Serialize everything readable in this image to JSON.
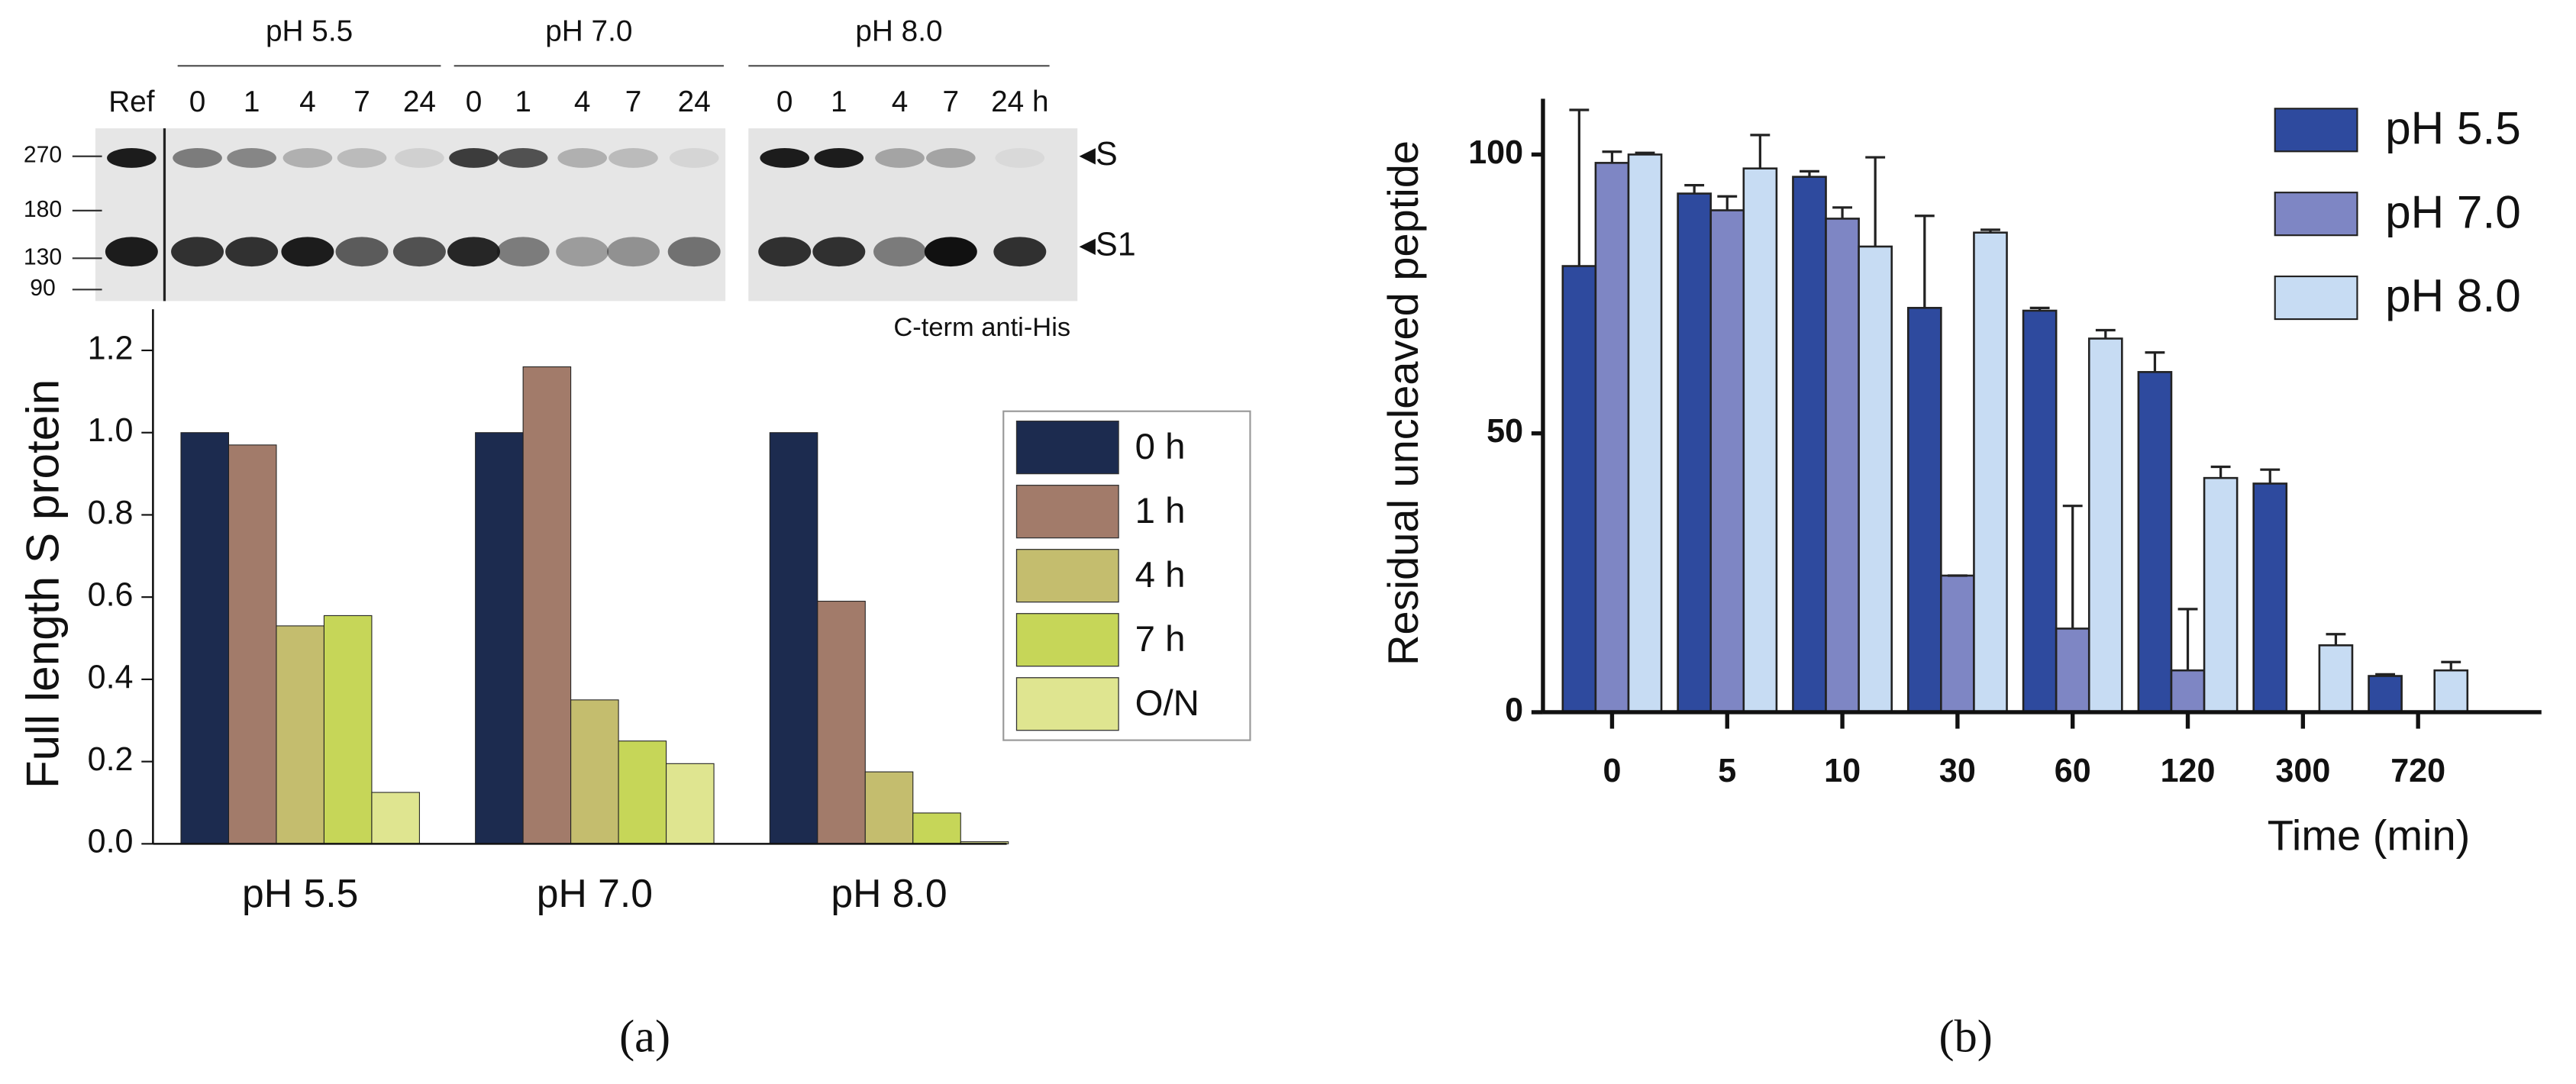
{
  "panels": [
    "(a)",
    "(b)"
  ],
  "blot": {
    "groups": [
      "pH 5.5",
      "pH 7.0",
      "pH 8.0"
    ],
    "lanes": [
      "Ref",
      "0",
      "1",
      "4",
      "7",
      "24",
      "0",
      "1",
      "4",
      "7",
      "24",
      "0",
      "1",
      "4",
      "7",
      "24 h"
    ],
    "markers": [
      "270",
      "180",
      "130",
      "90"
    ],
    "bands": [
      "◂S",
      "◂S1"
    ],
    "antibody": "C-term anti-His"
  },
  "chart_data": [
    {
      "type": "bar",
      "ylabel": "Full length S protein",
      "categories": [
        "pH 5.5",
        "pH 7.0",
        "pH 8.0"
      ],
      "series": [
        {
          "name": "0 h",
          "color": "#1c2b4f",
          "values": [
            1.0,
            1.0,
            1.0
          ]
        },
        {
          "name": "1 h",
          "color": "#a27b6a",
          "values": [
            0.97,
            1.16,
            0.59
          ]
        },
        {
          "name": "4 h",
          "color": "#c4bd6e",
          "values": [
            0.53,
            0.35,
            0.175
          ]
        },
        {
          "name": "7 h",
          "color": "#c6d658",
          "values": [
            0.555,
            0.25,
            0.075
          ]
        },
        {
          "name": "O/N",
          "color": "#dfe590",
          "values": [
            0.125,
            0.195,
            0.005
          ]
        }
      ],
      "ylim": [
        0,
        1.3
      ],
      "yticks": [
        {
          "value": 0,
          "label": "0.0"
        },
        0.2,
        0.4,
        0.6,
        0.8,
        {
          "value": 1,
          "label": "1.0"
        },
        1.2
      ],
      "legend": "right"
    },
    {
      "type": "bar",
      "ylabel": "Residual uncleaved peptide",
      "xlabel": "Time (min)",
      "categories": [
        "0",
        "5",
        "10",
        "30",
        "60",
        "120",
        "300",
        "720"
      ],
      "series": [
        {
          "name": "pH 5.5",
          "color": "#2e4a9e",
          "values": [
            80,
            93,
            96,
            72.5,
            72,
            61,
            41,
            6.5
          ],
          "errors": [
            28,
            1.5,
            1,
            16.5,
            0.5,
            3.5,
            2.5,
            0.3
          ]
        },
        {
          "name": "pH 7.0",
          "color": "#7e86c4",
          "values": [
            98.5,
            90,
            88.5,
            24.5,
            15,
            7.5,
            null,
            null
          ],
          "errors": [
            2,
            2.5,
            2,
            0,
            22,
            11,
            null,
            null
          ]
        },
        {
          "name": "pH 8.0",
          "color": "#c7dcf3",
          "values": [
            100,
            97.5,
            83.5,
            86,
            67,
            42,
            12,
            7.5
          ],
          "errors": [
            0.3,
            6,
            16,
            0.5,
            1.5,
            2,
            2,
            1.5
          ]
        }
      ],
      "ylim": [
        0,
        110
      ],
      "yticks": [
        0,
        50,
        100
      ],
      "legend": "upper right"
    }
  ]
}
